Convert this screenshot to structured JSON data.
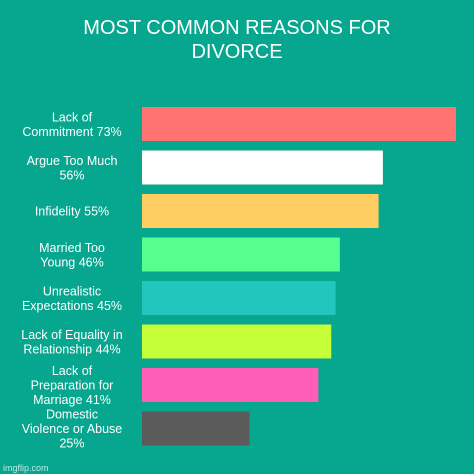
{
  "chart_data": {
    "type": "bar",
    "orientation": "horizontal",
    "title_lines": [
      "MOST COMMON REASONS FOR",
      "DIVORCE"
    ],
    "categories": [
      [
        "Lack of",
        "Commitment 73%"
      ],
      [
        "Argue Too Much",
        "56%"
      ],
      [
        "Infidelity 55%"
      ],
      [
        "Married Too",
        "Young 46%"
      ],
      [
        "Unrealistic",
        "Expectations 45%"
      ],
      [
        "Lack of Equality in",
        "Relationship 44%"
      ],
      [
        "Lack of",
        "Preparation for",
        "Marriage 41%"
      ],
      [
        "Domestic",
        "Violence or Abuse",
        "25%"
      ]
    ],
    "values": [
      73,
      56,
      55,
      46,
      45,
      44,
      41,
      25
    ],
    "colors": [
      "#ff7373",
      "#ffffff",
      "#ffce63",
      "#57ff8f",
      "#22c6bc",
      "#c5ff37",
      "#ff5eb8",
      "#5b5b5b"
    ],
    "xlim": [
      0,
      73
    ],
    "grid": false,
    "legend": "none",
    "background": "#07a68f"
  },
  "watermark": "imgflip.com"
}
